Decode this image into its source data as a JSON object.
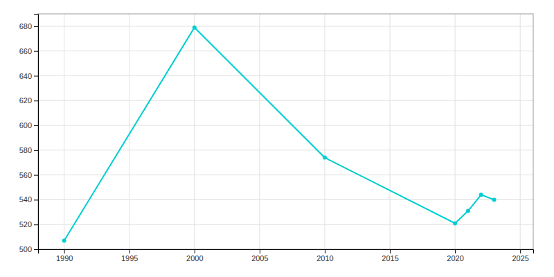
{
  "chart_data": {
    "type": "line",
    "x": [
      1990,
      2000,
      2010,
      2020,
      2021,
      2022,
      2023
    ],
    "values": [
      507,
      679,
      574,
      521,
      531,
      544,
      540
    ],
    "color": "#00CED1",
    "marker": "circle",
    "xlim": [
      1988,
      2026
    ],
    "ylim": [
      500,
      690
    ],
    "xticks": [
      1990,
      1995,
      2000,
      2005,
      2010,
      2015,
      2020,
      2025
    ],
    "yticks": [
      500,
      520,
      540,
      560,
      580,
      600,
      620,
      640,
      660,
      680
    ],
    "grid": true
  }
}
